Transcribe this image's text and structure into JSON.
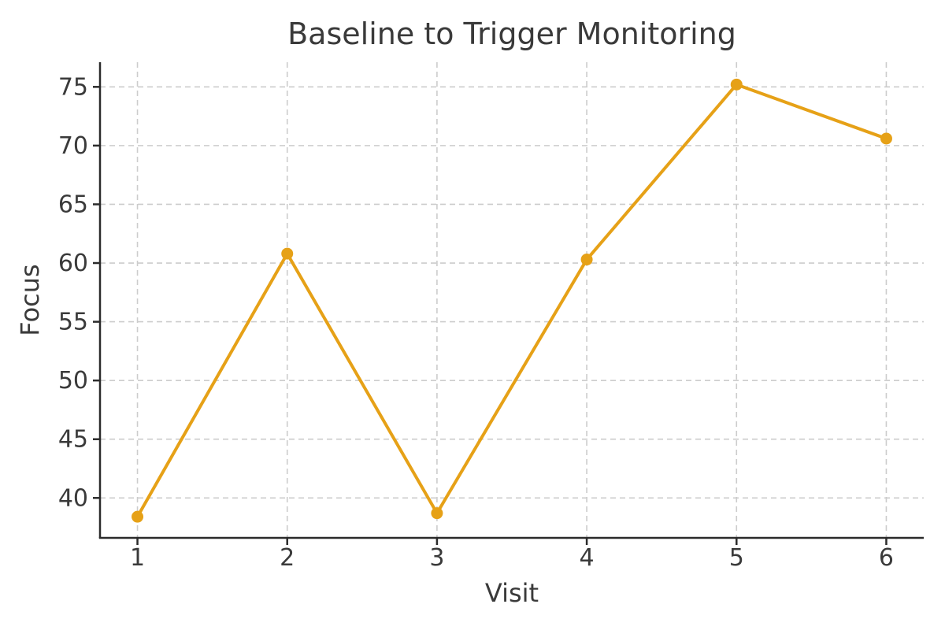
{
  "chart_data": {
    "type": "line",
    "title": "Baseline to Trigger Monitoring",
    "xlabel": "Visit",
    "ylabel": "Focus",
    "x": [
      1,
      2,
      3,
      4,
      5,
      6
    ],
    "series": [
      {
        "name": "Focus",
        "values": [
          38.4,
          60.8,
          38.7,
          60.3,
          75.2,
          70.6
        ]
      }
    ],
    "xticks": [
      1,
      2,
      3,
      4,
      5,
      6
    ],
    "yticks": [
      40,
      45,
      50,
      55,
      60,
      65,
      70,
      75
    ],
    "xlim": [
      0.75,
      6.25
    ],
    "ylim": [
      36.6,
      77.1
    ],
    "grid": true,
    "grid_style": "dashed",
    "legend": false,
    "line_color": "#E6A117",
    "marker": "circle",
    "marker_size": 15,
    "line_width": 4,
    "grid_color": "#CCCCCC",
    "spine_color": "#2B2B2B",
    "text_color": "#3A3A3A",
    "background": "#FFFFFF"
  }
}
